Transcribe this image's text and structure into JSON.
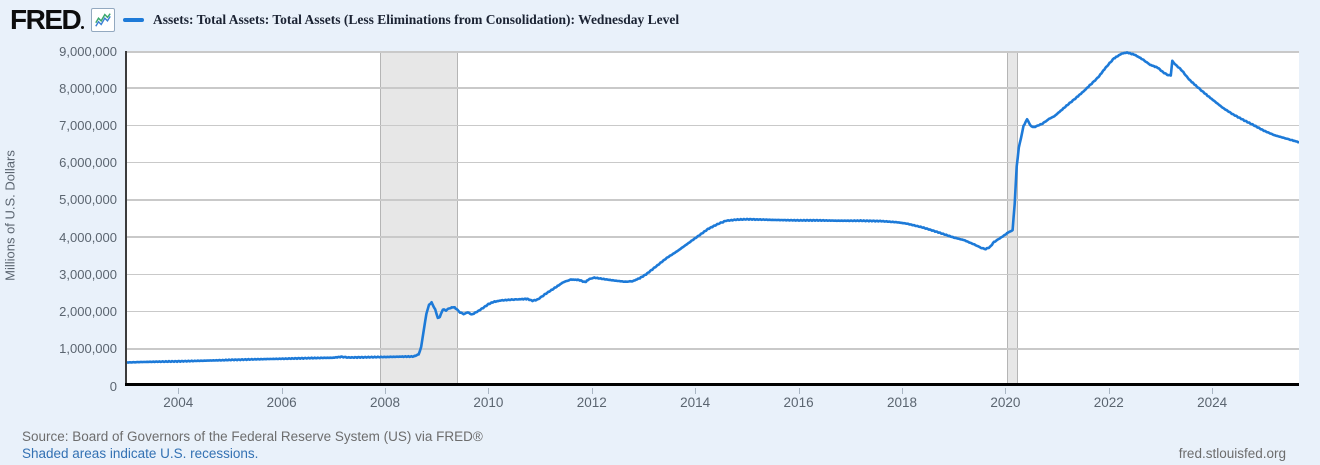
{
  "header": {
    "logo_text": "FRED",
    "legend": {
      "series_label": "Assets: Total Assets: Total Assets (Less Eliminations from Consolidation): Wednesday Level"
    }
  },
  "footer": {
    "source_line": "Source: Board of Governors of the Federal Reserve System (US) via FRED®",
    "recession_note": "Shaded areas indicate U.S. recessions.",
    "watermark": "fred.stlouisfed.org"
  },
  "colors": {
    "page_background": "#e9f1fa",
    "plot_background": "#ffffff",
    "gridline": "#c9c9c9",
    "series_line": "#1d7ad8",
    "recession_fill": "#e7e7e7",
    "link_blue": "#3371b3",
    "icon_line_blue": "#3b7fd4",
    "icon_line_green": "#3aa76d"
  },
  "chart_data": {
    "type": "line",
    "title": "Assets: Total Assets: Total Assets (Less Eliminations from Consolidation): Wednesday Level",
    "xlabel": "",
    "ylabel": "Millions of U.S. Dollars",
    "xlim": [
      2002.97,
      2025.68
    ],
    "ylim": [
      0,
      9000000
    ],
    "yticks": [
      0,
      1000000,
      2000000,
      3000000,
      4000000,
      5000000,
      6000000,
      7000000,
      8000000,
      9000000
    ],
    "xticks": [
      2004,
      2006,
      2008,
      2010,
      2012,
      2014,
      2016,
      2018,
      2020,
      2022,
      2024
    ],
    "grid": "horizontal",
    "legend_position": "top",
    "recessions": [
      {
        "start": 2007.9,
        "end": 2009.42
      },
      {
        "start": 2020.03,
        "end": 2020.24
      }
    ],
    "series": [
      {
        "name": "Assets: Total Assets: Total Assets (Less Eliminations from Consolidation): Wednesday Level",
        "units": "Millions of U.S. Dollars",
        "frequency": "Weekly (Wednesday Level)",
        "points_year_value": [
          [
            2002.97,
            630000
          ],
          [
            2003.3,
            645000
          ],
          [
            2003.7,
            655000
          ],
          [
            2004.0,
            662000
          ],
          [
            2004.5,
            680000
          ],
          [
            2005.0,
            700000
          ],
          [
            2005.5,
            718000
          ],
          [
            2006.0,
            732000
          ],
          [
            2006.5,
            748000
          ],
          [
            2007.0,
            760000
          ],
          [
            2007.15,
            785000
          ],
          [
            2007.3,
            765000
          ],
          [
            2007.6,
            772000
          ],
          [
            2008.0,
            780000
          ],
          [
            2008.3,
            788000
          ],
          [
            2008.55,
            792000
          ],
          [
            2008.65,
            850000
          ],
          [
            2008.7,
            1050000
          ],
          [
            2008.75,
            1500000
          ],
          [
            2008.8,
            1950000
          ],
          [
            2008.85,
            2180000
          ],
          [
            2008.9,
            2240000
          ],
          [
            2008.97,
            2060000
          ],
          [
            2009.02,
            1820000
          ],
          [
            2009.06,
            1860000
          ],
          [
            2009.12,
            2060000
          ],
          [
            2009.18,
            2030000
          ],
          [
            2009.25,
            2090000
          ],
          [
            2009.33,
            2120000
          ],
          [
            2009.4,
            2050000
          ],
          [
            2009.45,
            1980000
          ],
          [
            2009.52,
            1930000
          ],
          [
            2009.6,
            1980000
          ],
          [
            2009.68,
            1920000
          ],
          [
            2009.8,
            2010000
          ],
          [
            2009.92,
            2120000
          ],
          [
            2010.0,
            2200000
          ],
          [
            2010.1,
            2260000
          ],
          [
            2010.25,
            2300000
          ],
          [
            2010.45,
            2320000
          ],
          [
            2010.6,
            2330000
          ],
          [
            2010.75,
            2340000
          ],
          [
            2010.85,
            2290000
          ],
          [
            2010.95,
            2320000
          ],
          [
            2011.1,
            2470000
          ],
          [
            2011.3,
            2650000
          ],
          [
            2011.45,
            2790000
          ],
          [
            2011.6,
            2860000
          ],
          [
            2011.75,
            2850000
          ],
          [
            2011.87,
            2790000
          ],
          [
            2011.96,
            2880000
          ],
          [
            2012.05,
            2910000
          ],
          [
            2012.25,
            2870000
          ],
          [
            2012.45,
            2830000
          ],
          [
            2012.65,
            2800000
          ],
          [
            2012.8,
            2820000
          ],
          [
            2012.93,
            2900000
          ],
          [
            2013.05,
            3000000
          ],
          [
            2013.25,
            3220000
          ],
          [
            2013.45,
            3440000
          ],
          [
            2013.65,
            3620000
          ],
          [
            2013.85,
            3820000
          ],
          [
            2014.05,
            4020000
          ],
          [
            2014.25,
            4220000
          ],
          [
            2014.45,
            4360000
          ],
          [
            2014.6,
            4440000
          ],
          [
            2014.8,
            4470000
          ],
          [
            2015.0,
            4480000
          ],
          [
            2015.3,
            4470000
          ],
          [
            2015.6,
            4460000
          ],
          [
            2016.0,
            4450000
          ],
          [
            2016.4,
            4450000
          ],
          [
            2016.8,
            4440000
          ],
          [
            2017.2,
            4440000
          ],
          [
            2017.6,
            4430000
          ],
          [
            2017.9,
            4400000
          ],
          [
            2018.1,
            4360000
          ],
          [
            2018.4,
            4260000
          ],
          [
            2018.7,
            4130000
          ],
          [
            2019.0,
            3990000
          ],
          [
            2019.2,
            3920000
          ],
          [
            2019.4,
            3800000
          ],
          [
            2019.55,
            3700000
          ],
          [
            2019.62,
            3680000
          ],
          [
            2019.7,
            3730000
          ],
          [
            2019.78,
            3870000
          ],
          [
            2019.85,
            3930000
          ],
          [
            2019.95,
            4020000
          ],
          [
            2020.05,
            4120000
          ],
          [
            2020.1,
            4160000
          ],
          [
            2020.14,
            4180000
          ],
          [
            2020.18,
            4900000
          ],
          [
            2020.22,
            5900000
          ],
          [
            2020.26,
            6400000
          ],
          [
            2020.3,
            6650000
          ],
          [
            2020.35,
            6980000
          ],
          [
            2020.42,
            7170000
          ],
          [
            2020.48,
            7010000
          ],
          [
            2020.53,
            6950000
          ],
          [
            2020.62,
            6990000
          ],
          [
            2020.72,
            7050000
          ],
          [
            2020.85,
            7180000
          ],
          [
            2020.95,
            7250000
          ],
          [
            2021.05,
            7370000
          ],
          [
            2021.2,
            7550000
          ],
          [
            2021.35,
            7720000
          ],
          [
            2021.5,
            7900000
          ],
          [
            2021.65,
            8100000
          ],
          [
            2021.8,
            8300000
          ],
          [
            2021.95,
            8570000
          ],
          [
            2022.1,
            8800000
          ],
          [
            2022.25,
            8930000
          ],
          [
            2022.35,
            8960000
          ],
          [
            2022.5,
            8900000
          ],
          [
            2022.65,
            8780000
          ],
          [
            2022.8,
            8630000
          ],
          [
            2022.95,
            8550000
          ],
          [
            2023.05,
            8430000
          ],
          [
            2023.15,
            8350000
          ],
          [
            2023.2,
            8340000
          ],
          [
            2023.23,
            8730000
          ],
          [
            2023.3,
            8620000
          ],
          [
            2023.4,
            8500000
          ],
          [
            2023.55,
            8240000
          ],
          [
            2023.7,
            8050000
          ],
          [
            2023.85,
            7870000
          ],
          [
            2024.0,
            7700000
          ],
          [
            2024.2,
            7480000
          ],
          [
            2024.4,
            7300000
          ],
          [
            2024.6,
            7150000
          ],
          [
            2024.8,
            7010000
          ],
          [
            2025.0,
            6860000
          ],
          [
            2025.2,
            6740000
          ],
          [
            2025.4,
            6660000
          ],
          [
            2025.55,
            6600000
          ],
          [
            2025.68,
            6550000
          ]
        ]
      }
    ]
  }
}
